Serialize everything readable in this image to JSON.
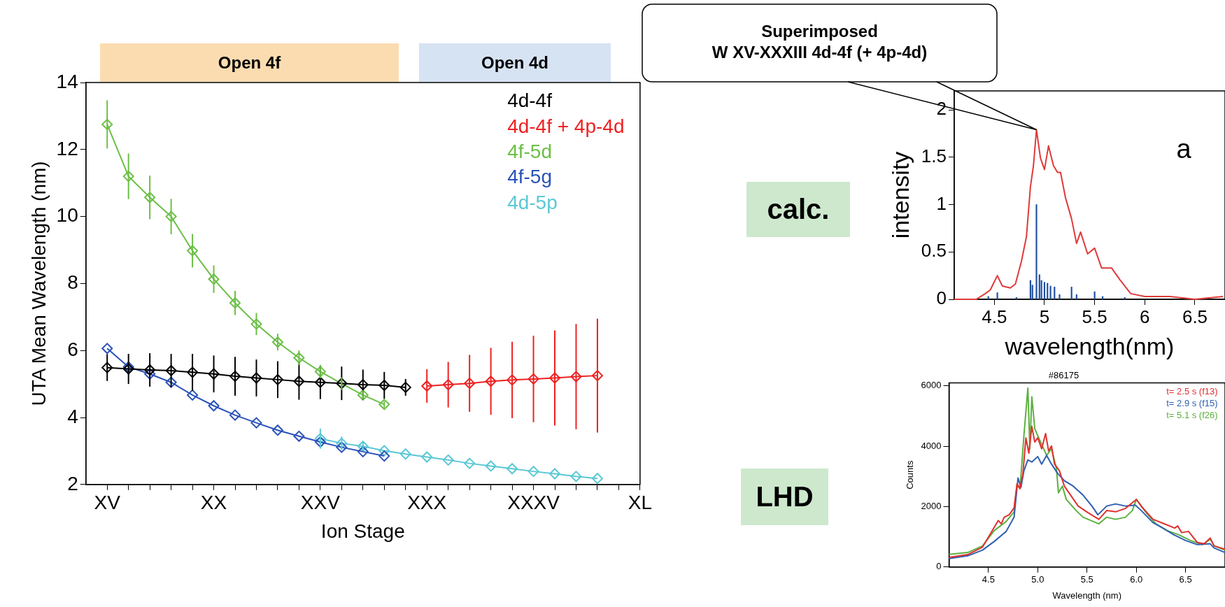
{
  "chart_data": [
    {
      "type": "line",
      "xlabel": "Ion Stage",
      "ylabel": "UTA Mean Wavelength (nm)",
      "ylim": [
        2,
        14
      ],
      "categories": [
        "XV",
        null,
        null,
        null,
        null,
        "XX",
        null,
        null,
        null,
        null,
        "XXV",
        null,
        null,
        null,
        null,
        "XXX",
        null,
        null,
        null,
        null,
        "XXXV",
        null,
        null,
        null,
        null,
        "XL"
      ],
      "yticks": [
        2,
        4,
        6,
        8,
        10,
        12,
        14
      ],
      "grid": false,
      "legend": "top right",
      "marker": "diamond",
      "annotations": [
        "Open 4f",
        "Open 4d"
      ],
      "series": [
        {
          "name": "4d-4f",
          "color": "#000000",
          "values": [
            5.49,
            5.45,
            5.42,
            5.4,
            5.35,
            5.3,
            5.23,
            5.18,
            5.13,
            5.08,
            5.05,
            5.02,
            4.98,
            4.96,
            4.9,
            null,
            null,
            null,
            null,
            null,
            null,
            null,
            null,
            null,
            null,
            null
          ],
          "errors": [
            0.4,
            0.45,
            0.5,
            0.5,
            0.55,
            0.55,
            0.58,
            0.55,
            0.55,
            0.55,
            0.5,
            0.5,
            0.45,
            0.4,
            0.25,
            null,
            null,
            null,
            null,
            null,
            null,
            null,
            null,
            null,
            null,
            null
          ]
        },
        {
          "name": "4d-4f + 4p-4d",
          "color": "#ee2222",
          "values": [
            null,
            null,
            null,
            null,
            null,
            null,
            null,
            null,
            null,
            null,
            null,
            null,
            null,
            null,
            null,
            4.94,
            4.98,
            5.02,
            5.08,
            5.12,
            5.15,
            5.18,
            5.22,
            5.25,
            null,
            null
          ],
          "errors": [
            null,
            null,
            null,
            null,
            null,
            null,
            null,
            null,
            null,
            null,
            null,
            null,
            null,
            null,
            null,
            0.5,
            0.68,
            0.85,
            1.0,
            1.14,
            1.29,
            1.42,
            1.57,
            1.7,
            null,
            null
          ]
        },
        {
          "name": "4f-5d",
          "color": "#6cbf47",
          "values": [
            12.75,
            11.2,
            10.57,
            10.0,
            8.98,
            8.13,
            7.42,
            6.79,
            6.25,
            5.78,
            5.37,
            5.01,
            4.67,
            4.39,
            null,
            null,
            null,
            null,
            null,
            null,
            null,
            null,
            null,
            null,
            null,
            null
          ],
          "errors": [
            0.72,
            0.68,
            0.65,
            0.53,
            0.5,
            0.41,
            0.36,
            0.33,
            0.25,
            0.22,
            0.2,
            0.19,
            0.14,
            0.1,
            null,
            null,
            null,
            null,
            null,
            null,
            null,
            null,
            null,
            null,
            null,
            null
          ]
        },
        {
          "name": "4f-5g",
          "color": "#2a52b8",
          "values": [
            6.06,
            5.51,
            5.3,
            5.05,
            4.67,
            4.35,
            4.07,
            3.84,
            3.62,
            3.44,
            3.27,
            3.11,
            2.98,
            2.85,
            null,
            null,
            null,
            null,
            null,
            null,
            null,
            null,
            null,
            null,
            null,
            null
          ]
        },
        {
          "name": "4d-5p",
          "color": "#5bc8d5",
          "values": [
            null,
            null,
            null,
            null,
            null,
            null,
            null,
            null,
            null,
            null,
            3.37,
            3.23,
            3.14,
            3.01,
            2.91,
            2.82,
            2.73,
            2.63,
            2.55,
            2.47,
            2.39,
            2.32,
            2.24,
            2.18,
            null,
            null
          ],
          "errors": [
            null,
            null,
            null,
            null,
            null,
            null,
            null,
            null,
            null,
            null,
            0.3,
            0.2,
            0.15,
            null,
            null,
            null,
            null,
            null,
            null,
            null,
            null,
            null,
            null,
            null,
            null,
            null
          ]
        }
      ]
    },
    {
      "type": "line",
      "xlabel": "wavelength(nm)",
      "ylabel": "intensity",
      "xlim": [
        4.1,
        6.8
      ],
      "ylim": [
        0,
        2.2
      ],
      "xticks": [
        4.5,
        5,
        5.5,
        6,
        6.5
      ],
      "yticks": [
        0,
        0.5,
        1,
        1.5,
        2
      ],
      "grid": false,
      "marker": "none",
      "annotations": [
        "calc.",
        "a",
        "Superimposed\nW XV-XXXIII 4d-4f (+ 4p-4d)"
      ],
      "series": [
        {
          "color": "#e03a3a",
          "x": [
            4.1,
            4.32,
            4.41,
            4.46,
            4.53,
            4.58,
            4.66,
            4.71,
            4.77,
            4.82,
            4.86,
            4.89,
            4.92,
            4.96,
            5.0,
            5.04,
            5.09,
            5.13,
            5.16,
            5.21,
            5.27,
            5.32,
            5.36,
            5.43,
            5.5,
            5.57,
            5.67,
            5.75,
            5.86,
            6.0,
            6.25,
            6.5,
            6.78
          ],
          "values": [
            0,
            0,
            0.06,
            0.1,
            0.25,
            0.14,
            0.12,
            0.16,
            0.4,
            0.66,
            1.19,
            1.41,
            1.79,
            1.49,
            1.37,
            1.62,
            1.41,
            1.34,
            1.34,
            1.07,
            0.85,
            0.59,
            0.71,
            0.48,
            0.54,
            0.33,
            0.33,
            0.21,
            0.06,
            0.03,
            0.03,
            0,
            0.03
          ]
        },
        {
          "type": "bar",
          "color": "#1f4fa0",
          "x": [
            4.44,
            4.53,
            4.72,
            4.86,
            4.88,
            4.92,
            4.95,
            4.97,
            5.0,
            5.03,
            5.06,
            5.1,
            5.15,
            5.27,
            5.32,
            5.5,
            5.58,
            5.8
          ],
          "values": [
            0.03,
            0.07,
            0.02,
            0.2,
            0.15,
            1.0,
            0.26,
            0.2,
            0.18,
            0.17,
            0.14,
            0.13,
            0.05,
            0.13,
            0.05,
            0.08,
            0.03,
            0.02
          ]
        }
      ]
    },
    {
      "type": "line",
      "title": "#86175",
      "xlabel": "Wavelength (nm)",
      "ylabel": "Counts",
      "xlim": [
        4.1,
        6.9
      ],
      "ylim": [
        0,
        6100
      ],
      "xticks": [
        4.5,
        {
          "value": 5,
          "label": "5.0"
        },
        5.5,
        {
          "value": 6,
          "label": "6.0"
        },
        6.5
      ],
      "yticks": [
        0,
        2000,
        4000,
        6000
      ],
      "grid": false,
      "legend": "top right",
      "marker": "none",
      "annotations": [
        "LHD"
      ],
      "series": [
        {
          "name": "t= 2.5 s (f13)",
          "color": "#e03030",
          "x": [
            4.1,
            4.29,
            4.44,
            4.54,
            4.6,
            4.63,
            4.66,
            4.71,
            4.76,
            4.79,
            4.82,
            4.85,
            4.88,
            4.91,
            4.94,
            4.97,
            5.0,
            5.04,
            5.08,
            5.11,
            5.14,
            5.17,
            5.22,
            5.27,
            5.34,
            5.41,
            5.51,
            5.62,
            5.7,
            5.79,
            5.89,
            6.0,
            6.06,
            6.17,
            6.27,
            6.39,
            6.42,
            6.46,
            6.53,
            6.62,
            6.69,
            6.75,
            6.79,
            6.9
          ],
          "values": [
            320,
            410,
            660,
            1210,
            1540,
            1430,
            1650,
            1730,
            1960,
            2750,
            2600,
            3110,
            4280,
            3770,
            4660,
            4140,
            4280,
            3920,
            4420,
            3850,
            4010,
            3410,
            3190,
            2680,
            2350,
            2020,
            1800,
            1580,
            1870,
            1830,
            1940,
            2240,
            1980,
            1580,
            1450,
            1290,
            1360,
            1140,
            1180,
            810,
            770,
            960,
            700,
            590
          ]
        },
        {
          "name": "t= 2.9 s (f15)",
          "color": "#2f5fb0",
          "x": [
            4.1,
            4.29,
            4.44,
            4.56,
            4.68,
            4.76,
            4.8,
            4.83,
            4.86,
            4.9,
            4.94,
            5.0,
            5.04,
            5.09,
            5.14,
            5.2,
            5.27,
            5.36,
            5.46,
            5.55,
            5.61,
            5.7,
            5.79,
            5.89,
            5.99,
            6.05,
            6.17,
            6.27,
            6.38,
            6.5,
            6.62,
            6.75,
            6.79,
            6.9
          ],
          "values": [
            280,
            370,
            560,
            850,
            1180,
            1650,
            2950,
            2640,
            3190,
            3550,
            3480,
            3660,
            3410,
            3700,
            3410,
            3110,
            2860,
            2680,
            2380,
            2020,
            1730,
            2020,
            2090,
            2020,
            2050,
            1870,
            1470,
            1290,
            1070,
            880,
            740,
            770,
            630,
            480
          ]
        },
        {
          "name": "t= 5.1 s (f26)",
          "color": "#5cb040",
          "x": [
            4.1,
            4.29,
            4.44,
            4.56,
            4.68,
            4.76,
            4.79,
            4.82,
            4.86,
            4.9,
            4.92,
            4.94,
            4.97,
            5.01,
            5.05,
            5.09,
            5.14,
            5.19,
            5.21,
            5.25,
            5.29,
            5.39,
            5.46,
            5.62,
            5.7,
            5.79,
            5.89,
            5.96,
            6.0,
            6.1,
            6.2,
            6.31,
            6.43,
            6.55,
            6.67,
            6.75,
            6.79,
            6.9
          ],
          "values": [
            420,
            480,
            700,
            1210,
            1510,
            1830,
            2750,
            2600,
            4360,
            5930,
            3920,
            5640,
            4580,
            4280,
            3990,
            3700,
            3920,
            3260,
            2460,
            2680,
            2240,
            1870,
            1650,
            1430,
            1650,
            1580,
            1650,
            1870,
            2240,
            1800,
            1430,
            1210,
            1070,
            880,
            740,
            920,
            700,
            560
          ]
        }
      ]
    }
  ]
}
